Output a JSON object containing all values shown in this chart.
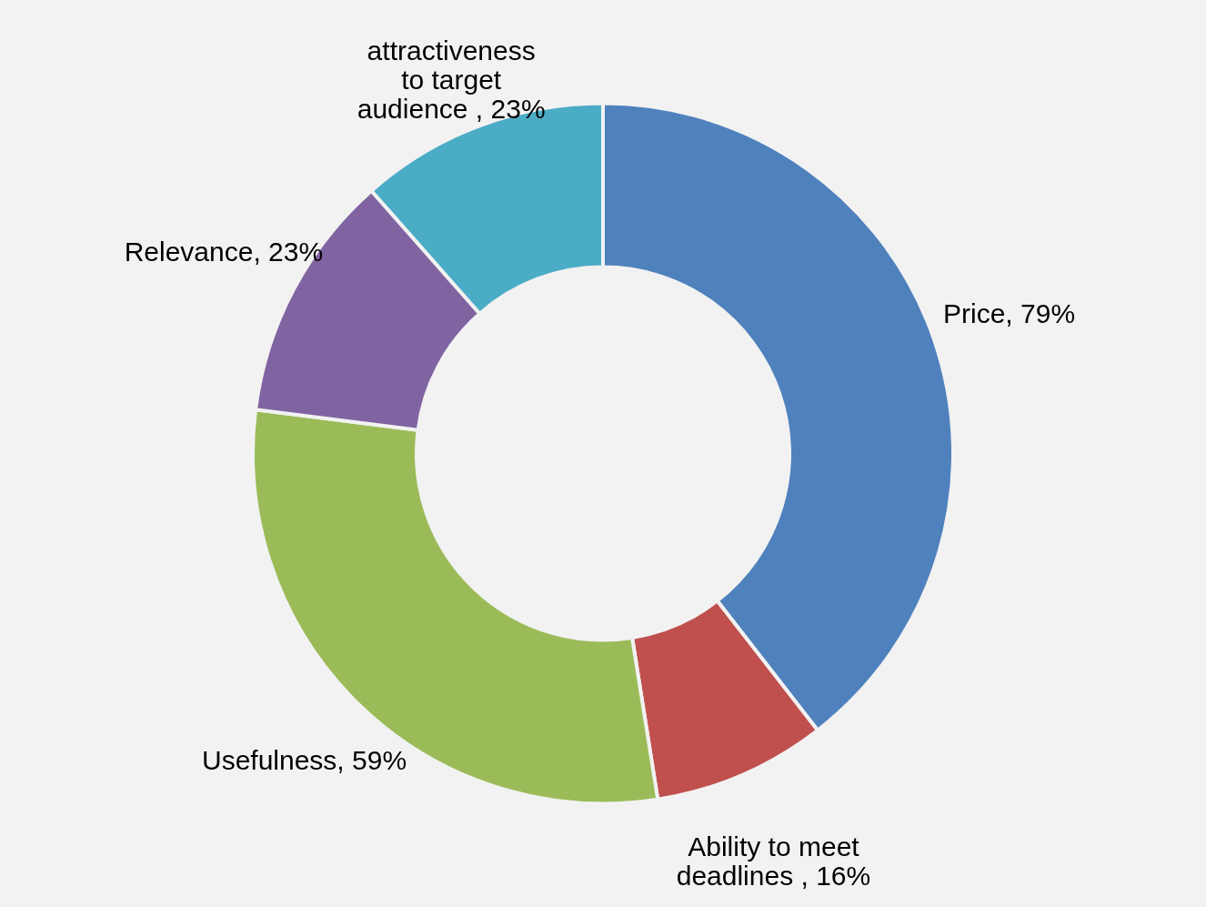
{
  "chart_data": {
    "type": "donut",
    "categories": [
      "Price",
      "Ability to meet deadlines",
      "Usefulness",
      "Relevance",
      "attractiveness to target audience"
    ],
    "values": [
      79,
      16,
      59,
      23,
      23
    ],
    "colors": [
      "#4f81bd",
      "#c0504d",
      "#9bbb59",
      "#8064a2",
      "#4bacc6"
    ],
    "value_labels": [
      ", 79%",
      " , 16%",
      ", 59%",
      ", 23%",
      " , 23%"
    ]
  }
}
